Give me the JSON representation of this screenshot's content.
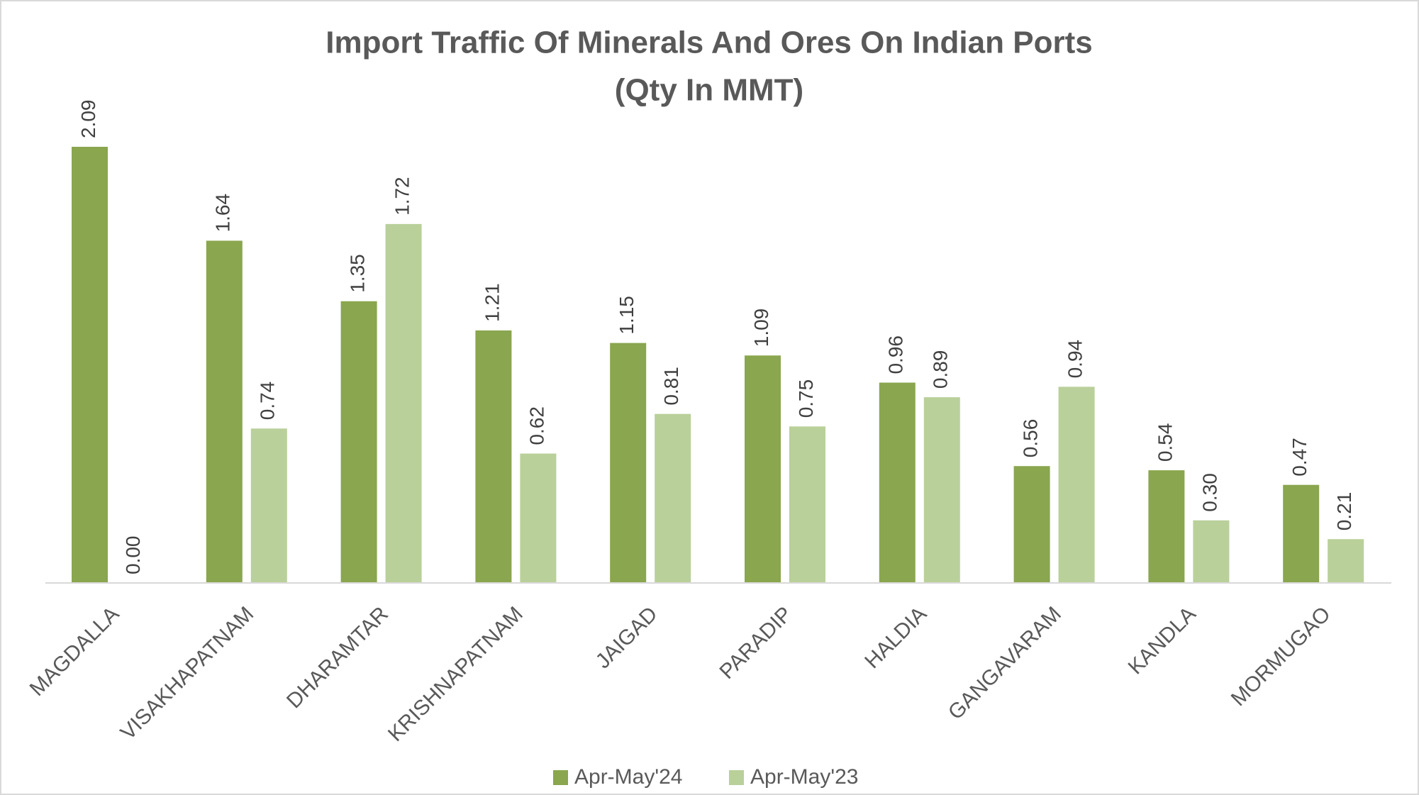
{
  "chart_data": {
    "type": "bar",
    "title": [
      "Import Traffic Of Minerals And Ores On Indian Ports",
      "(Qty In MMT)"
    ],
    "categories": [
      "MAGDALLA",
      "VISAKHAPATNAM",
      "DHARAMTAR",
      "KRISHNAPATNAM",
      "JAIGAD",
      "PARADIP",
      "HALDIA",
      "GANGAVARAM",
      "KANDLA",
      "MORMUGAO"
    ],
    "series": [
      {
        "name": "Apr-May'24",
        "color": "#8aa64e",
        "values": [
          2.09,
          1.64,
          1.35,
          1.21,
          1.15,
          1.09,
          0.96,
          0.56,
          0.54,
          0.47
        ],
        "value_labels": [
          "2.09",
          "1.64",
          "1.35",
          "1.21",
          "1.15",
          "1.09",
          "0.96",
          "0.56",
          "0.54",
          "0.47"
        ]
      },
      {
        "name": "Apr-May'23",
        "color": "#b9d09a",
        "values": [
          0,
          0.74,
          1.72,
          0.62,
          0.81,
          0.75,
          0.89,
          0.94,
          0.3,
          0.21
        ],
        "value_labels": [
          "0.00",
          "0.74",
          "1.72",
          "0.62",
          "0.81",
          "0.75",
          "0.89",
          "0.94",
          "0.30",
          "0.21"
        ]
      }
    ],
    "legend": "bottom"
  }
}
